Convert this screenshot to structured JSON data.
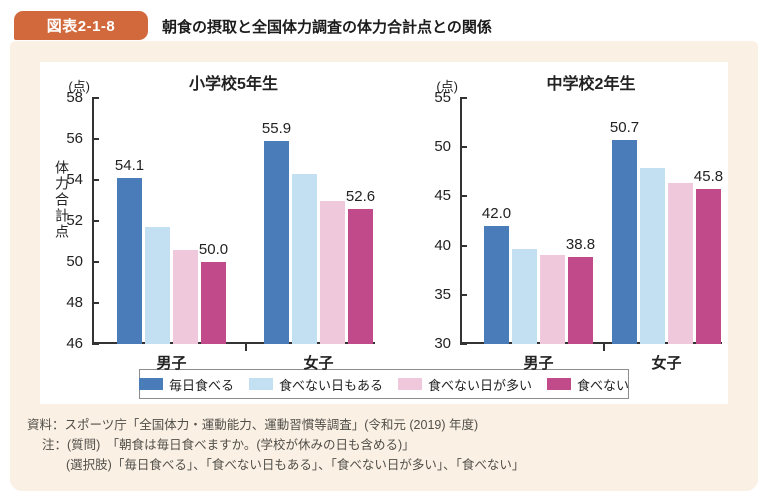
{
  "header": {
    "badge_label": "図表2-1-8",
    "title": "朝食の摂取と全国体力調査の体力合計点との関係"
  },
  "colors": {
    "badge": "#d2693c",
    "panel": "#faf0e4",
    "axis": "#333333",
    "series": [
      "#4a7cba",
      "#c3e0f3",
      "#f0c8db",
      "#c04a8a"
    ]
  },
  "legend": {
    "items": [
      {
        "label": "毎日食べる",
        "color": "#4a7cba"
      },
      {
        "label": "食べない日もある",
        "color": "#c3e0f3"
      },
      {
        "label": "食べない日が多い",
        "color": "#f0c8db"
      },
      {
        "label": "食べない",
        "color": "#c04a8a"
      }
    ]
  },
  "chart_data": [
    {
      "type": "bar",
      "title": "小学校5年生",
      "unit_label": "(点)",
      "ylabel": "体力合計点",
      "ylim": [
        46,
        58
      ],
      "yticks": [
        46,
        48,
        50,
        52,
        54,
        56,
        58
      ],
      "grid": false,
      "categories": [
        "男子",
        "女子"
      ],
      "series": [
        {
          "name": "毎日食べる",
          "color": "#4a7cba",
          "values": [
            54.1,
            55.9
          ]
        },
        {
          "name": "食べない日もある",
          "color": "#c3e0f3",
          "values": [
            51.7,
            54.3
          ]
        },
        {
          "name": "食べない日が多い",
          "color": "#f0c8db",
          "values": [
            50.6,
            53.0
          ]
        },
        {
          "name": "食べない",
          "color": "#c04a8a",
          "values": [
            50.0,
            52.6
          ]
        }
      ],
      "labeled_series": [
        0,
        3
      ]
    },
    {
      "type": "bar",
      "title": "中学校2年生",
      "unit_label": "(点)",
      "ylabel": "",
      "ylim": [
        30,
        55
      ],
      "yticks": [
        30,
        35,
        40,
        45,
        50,
        55
      ],
      "grid": false,
      "categories": [
        "男子",
        "女子"
      ],
      "series": [
        {
          "name": "毎日食べる",
          "color": "#4a7cba",
          "values": [
            42.0,
            50.7
          ]
        },
        {
          "name": "食べない日もある",
          "color": "#c3e0f3",
          "values": [
            39.7,
            47.9
          ]
        },
        {
          "name": "食べない日が多い",
          "color": "#f0c8db",
          "values": [
            39.0,
            46.4
          ]
        },
        {
          "name": "食べない",
          "color": "#c04a8a",
          "values": [
            38.8,
            45.8
          ]
        }
      ],
      "labeled_series": [
        0,
        3
      ]
    }
  ],
  "footer": {
    "lines": [
      "資料：スポーツ庁「全国体力・運動能力、運動習慣等調査」(令和元 (2019) 年度)",
      "注：(質問)　「朝食は毎日食べますか。(学校が休みの日も含める)」",
      "(選択肢)「毎日食べる」、「食べない日もある」、「食べない日が多い」、「食べない」"
    ]
  }
}
